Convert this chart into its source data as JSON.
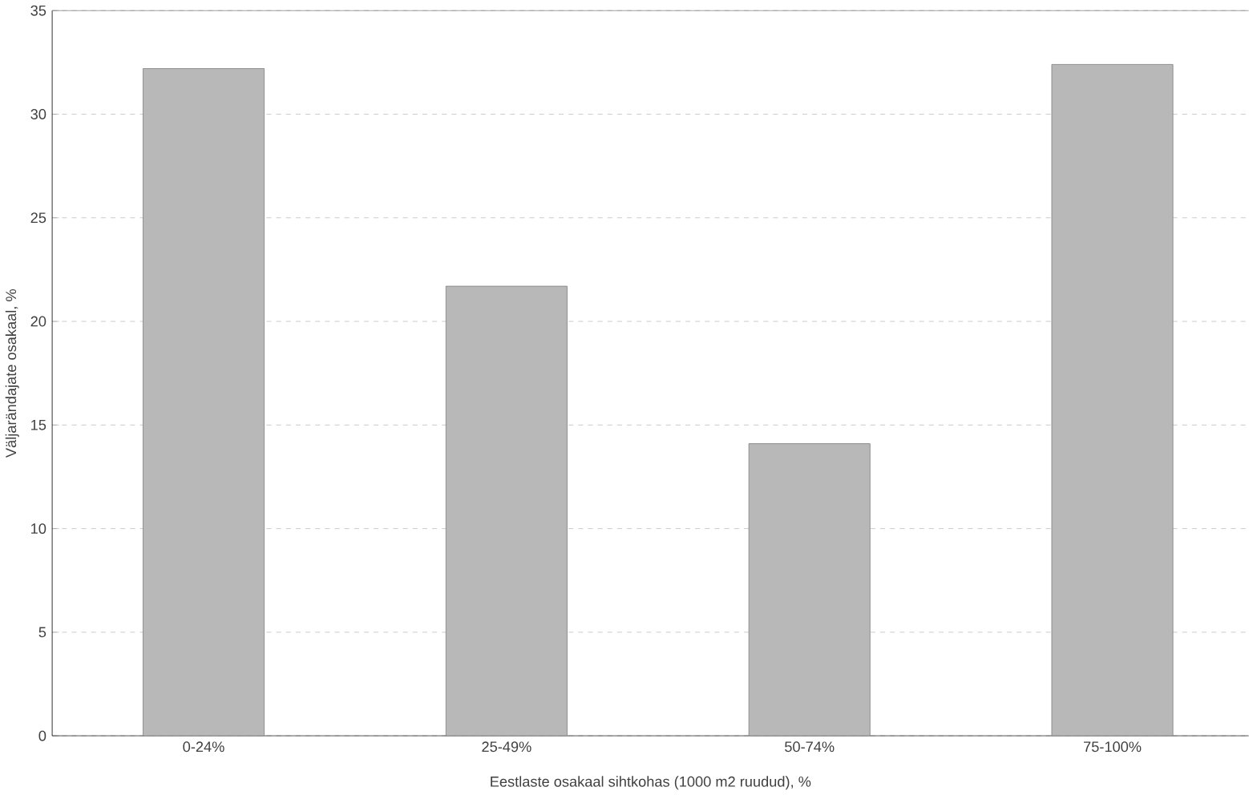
{
  "chart_data": {
    "type": "bar",
    "xlabel": "Eestlaste osakaal sihtkohas (1000 m2 ruudud), %",
    "ylabel": "Väljarändajate osakaal, %",
    "categories": [
      "0-24%",
      "25-49%",
      "50-74%",
      "75-100%"
    ],
    "values": [
      32.2,
      21.7,
      14.1,
      32.4
    ],
    "color": "#b8b8b8",
    "ylim": [
      0,
      35
    ],
    "yticks": [
      0,
      5,
      10,
      15,
      20,
      25,
      30,
      35
    ],
    "grid": "y"
  }
}
